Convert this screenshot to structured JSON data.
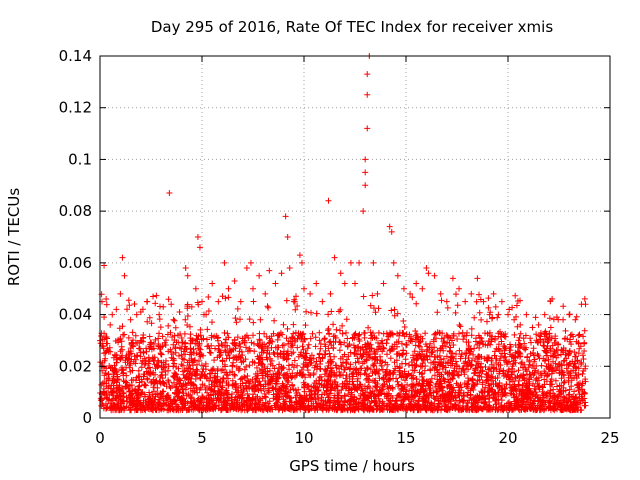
{
  "chart_data": {
    "type": "scatter",
    "title": "Day 295 of 2016, Rate Of TEC Index for receiver xmis",
    "xlabel": "GPS time / hours",
    "ylabel": "ROTI / TECUs",
    "xlim": [
      0,
      25
    ],
    "ylim": [
      0,
      0.14
    ],
    "x_ticks": [
      0,
      5,
      10,
      15,
      20,
      25
    ],
    "x_tick_labels": [
      "0",
      "5",
      "10",
      "15",
      "20",
      "25"
    ],
    "y_ticks": [
      0,
      0.02,
      0.04,
      0.06,
      0.08,
      0.1,
      0.12,
      0.14
    ],
    "y_tick_labels": [
      "0",
      "0.02",
      "0.04",
      "0.06",
      "0.08",
      "0.1",
      "0.12",
      "0.14"
    ],
    "grid": true,
    "marker": "+",
    "series": [
      {
        "name": "ROTI",
        "color": "#ff0000",
        "x": [
          0.1,
          0.2,
          0.2,
          0.3,
          0.5,
          0.6,
          0.8,
          1.0,
          1.1,
          1.2,
          1.5,
          1.8,
          2.0,
          2.3,
          2.6,
          2.9,
          3.1,
          3.4,
          3.6,
          3.9,
          4.2,
          4.3,
          4.5,
          4.7,
          4.8,
          4.9,
          5.0,
          5.2,
          5.5,
          5.8,
          6.1,
          6.3,
          6.6,
          6.9,
          7.2,
          7.4,
          7.5,
          7.8,
          8.1,
          8.3,
          8.6,
          8.9,
          9.1,
          9.2,
          9.3,
          9.5,
          9.8,
          9.9,
          10.0,
          10.3,
          10.6,
          10.9,
          11.2,
          11.3,
          11.5,
          11.8,
          12.0,
          12.3,
          12.5,
          12.7,
          12.9,
          13.0,
          13.0,
          13.0,
          13.1,
          13.1,
          13.1,
          13.2,
          13.4,
          13.6,
          13.9,
          14.2,
          14.3,
          14.4,
          14.6,
          14.9,
          15.2,
          15.5,
          15.8,
          16.0,
          16.1,
          16.4,
          16.7,
          17.0,
          17.3,
          17.6,
          17.9,
          18.2,
          18.5,
          18.8,
          19.1,
          19.4,
          19.7,
          20.0,
          20.3,
          20.6,
          20.9,
          21.2,
          21.5,
          21.8,
          22.1,
          22.4,
          22.7,
          23.0,
          23.3,
          23.6,
          23.8
        ],
        "y": [
          0.045,
          0.059,
          0.039,
          0.046,
          0.036,
          0.04,
          0.042,
          0.048,
          0.062,
          0.055,
          0.038,
          0.04,
          0.041,
          0.045,
          0.047,
          0.04,
          0.043,
          0.087,
          0.038,
          0.041,
          0.058,
          0.055,
          0.043,
          0.05,
          0.07,
          0.066,
          0.045,
          0.04,
          0.052,
          0.045,
          0.06,
          0.05,
          0.053,
          0.045,
          0.058,
          0.06,
          0.05,
          0.055,
          0.048,
          0.057,
          0.052,
          0.056,
          0.078,
          0.07,
          0.058,
          0.045,
          0.063,
          0.06,
          0.05,
          0.048,
          0.052,
          0.045,
          0.084,
          0.048,
          0.062,
          0.056,
          0.052,
          0.06,
          0.052,
          0.06,
          0.08,
          0.09,
          0.095,
          0.1,
          0.112,
          0.125,
          0.133,
          0.14,
          0.06,
          0.048,
          0.052,
          0.074,
          0.072,
          0.06,
          0.055,
          0.05,
          0.048,
          0.052,
          0.05,
          0.058,
          0.056,
          0.055,
          0.048,
          0.045,
          0.054,
          0.05,
          0.045,
          0.048,
          0.054,
          0.045,
          0.04,
          0.043,
          0.045,
          0.04,
          0.038,
          0.036,
          0.04,
          0.035,
          0.036,
          0.04,
          0.035,
          0.039,
          0.038,
          0.04,
          0.038,
          0.044,
          0.044
        ]
      }
    ],
    "baseline_band": {
      "description": "dense band of points across the full day",
      "x_range": [
        0,
        23.8
      ],
      "typical_range": [
        0.005,
        0.03
      ]
    }
  }
}
